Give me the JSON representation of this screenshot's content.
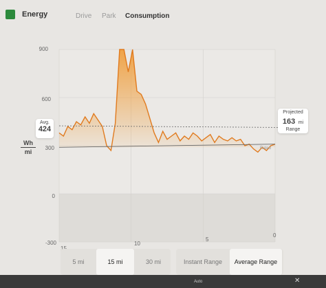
{
  "header": {
    "title": "Energy",
    "tabs": [
      {
        "label": "Drive"
      },
      {
        "label": "Park"
      },
      {
        "label": "Consumption"
      }
    ]
  },
  "chart": {
    "yaxis_unit_top": "Wh",
    "yaxis_unit_bottom": "mi",
    "y_ticks": [
      "900",
      "600",
      "300",
      "0",
      "-300"
    ],
    "x_ticks": [
      "15",
      "10",
      "5",
      "0"
    ],
    "avg_label": "Avg.",
    "avg_value": "424",
    "projected_label": "Projected",
    "projected_value": "163",
    "projected_unit": "mi",
    "projected_sub": "Range",
    "rated_label": "Rated"
  },
  "chart_data": {
    "type": "line",
    "x": [
      15.0,
      14.7,
      14.4,
      14.1,
      13.8,
      13.5,
      13.2,
      12.9,
      12.6,
      12.3,
      12.0,
      11.7,
      11.4,
      11.1,
      10.8,
      10.5,
      10.2,
      9.9,
      9.6,
      9.3,
      9.0,
      8.7,
      8.4,
      8.1,
      7.8,
      7.5,
      7.2,
      6.9,
      6.6,
      6.3,
      6.0,
      5.7,
      5.4,
      5.1,
      4.8,
      4.5,
      4.2,
      3.9,
      3.6,
      3.3,
      3.0,
      2.7,
      2.4,
      2.1,
      1.8,
      1.5,
      1.2,
      0.9,
      0.6,
      0.3,
      0.0
    ],
    "y": [
      380,
      360,
      420,
      400,
      450,
      430,
      480,
      440,
      500,
      460,
      420,
      300,
      270,
      440,
      900,
      920,
      760,
      900,
      640,
      620,
      560,
      470,
      380,
      320,
      390,
      340,
      360,
      380,
      330,
      360,
      340,
      380,
      360,
      330,
      350,
      370,
      320,
      360,
      340,
      330,
      350,
      330,
      340,
      300,
      310,
      280,
      260,
      290,
      270,
      300,
      310
    ],
    "avg": 424,
    "ylim": [
      -300,
      900
    ],
    "xlim": [
      15,
      0
    ],
    "line_color": "#e07a1e",
    "fill_color": "#f0a040",
    "grid": true
  },
  "buttons": [
    {
      "label": "5 mi"
    },
    {
      "label": "15 mi"
    },
    {
      "label": "30 mi"
    },
    {
      "label": "Instant Range"
    },
    {
      "label": "Average Range"
    }
  ],
  "bottom": {
    "auto_label": "Auto"
  }
}
